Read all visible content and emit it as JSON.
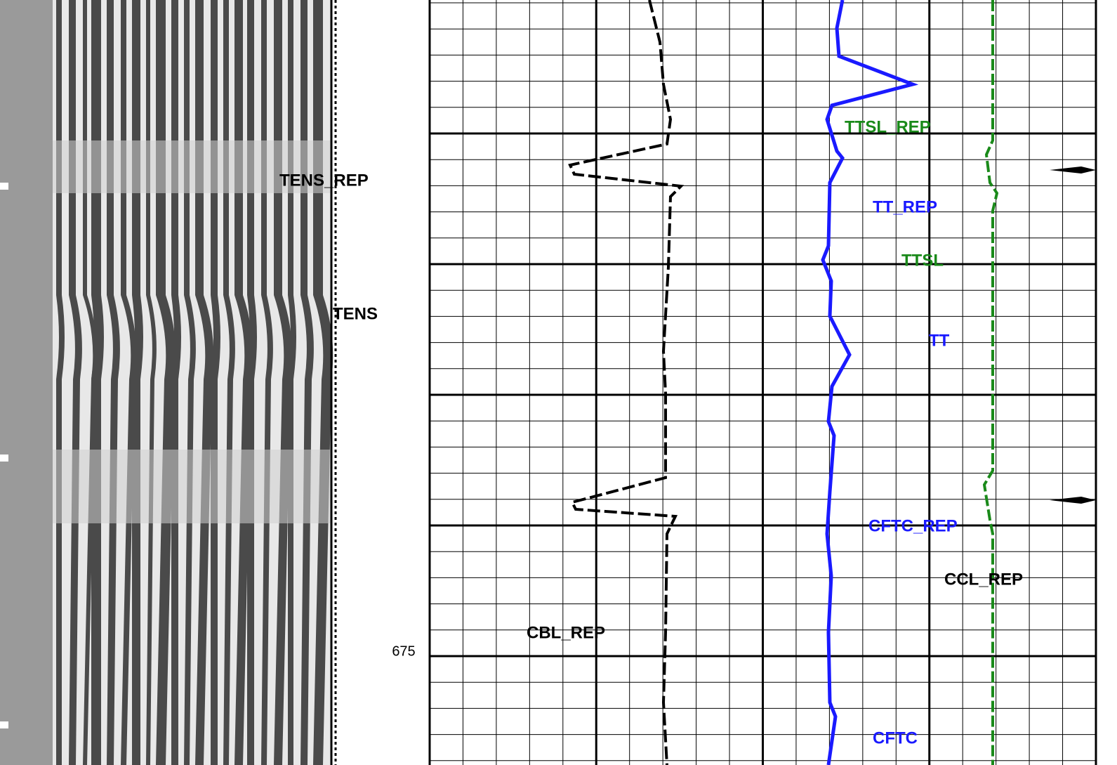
{
  "depth_label": "675",
  "curve_labels": [
    {
      "text": "TENS_REP",
      "color": "#000000"
    },
    {
      "text": "TENS",
      "color": "#000000"
    },
    {
      "text": "TTSL_REP",
      "color": "#1a8a1a"
    },
    {
      "text": "TT_REP",
      "color": "#1a1aff"
    },
    {
      "text": "TTSL",
      "color": "#1a8a1a"
    },
    {
      "text": "TT",
      "color": "#1a1aff"
    },
    {
      "text": "CFTC_REP",
      "color": "#1a1aff"
    },
    {
      "text": "CCL_REP",
      "color": "#000000"
    },
    {
      "text": "CBL_REP",
      "color": "#000000"
    },
    {
      "text": "CFTC",
      "color": "#1a1aff"
    }
  ]
}
